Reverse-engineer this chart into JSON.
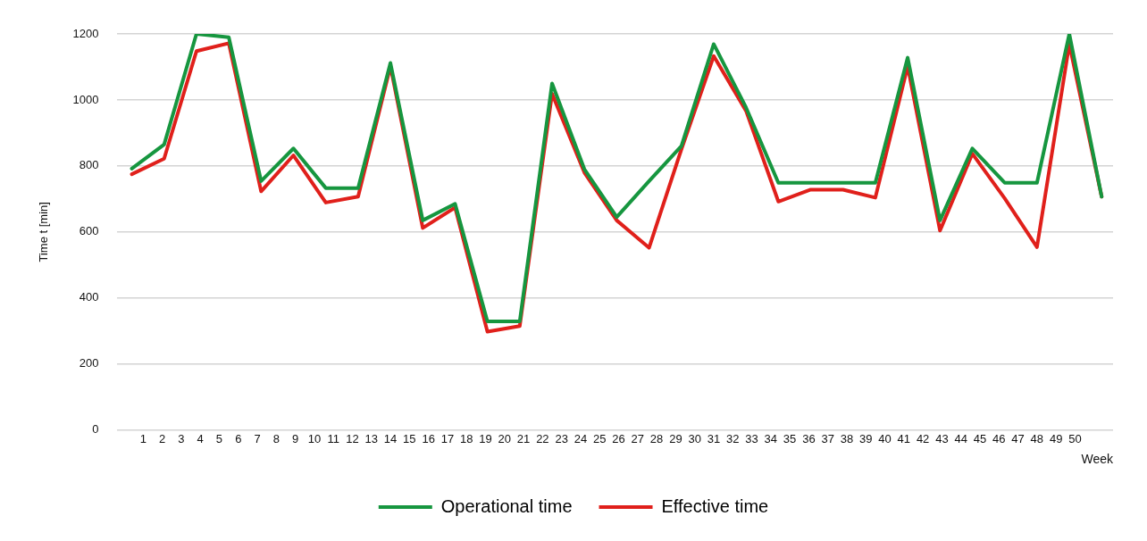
{
  "chart_data": {
    "type": "line",
    "xlabel": "Week",
    "ylabel": "Time t [min]",
    "x": [
      0.4,
      2.1,
      3.8,
      5.5,
      7.2,
      8.9,
      10.6,
      12.3,
      14.0,
      15.7,
      17.4,
      19.1,
      20.8,
      22.5,
      24.2,
      25.9,
      27.6,
      29.3,
      31.0,
      32.7,
      34.4,
      36.1,
      37.8,
      39.5,
      41.2,
      42.9,
      44.6,
      46.3,
      48.0,
      49.7,
      51.4
    ],
    "series": [
      {
        "name": "Operational time",
        "color": "#16963f",
        "values": [
          792,
          865,
          1200,
          1190,
          754,
          853,
          733,
          733,
          1112,
          635,
          685,
          329,
          329,
          1050,
          790,
          645,
          754,
          860,
          1169,
          977,
          749,
          749,
          749,
          749,
          1128,
          635,
          853,
          749,
          749,
          1200,
          707
        ]
      },
      {
        "name": "Effective time",
        "color": "#e0201b",
        "values": [
          775,
          822,
          1148,
          1172,
          723,
          832,
          689,
          707,
          1102,
          612,
          674,
          298,
          315,
          1019,
          780,
          635,
          552,
          850,
          1133,
          967,
          692,
          728,
          728,
          704,
          1102,
          604,
          837,
          702,
          554,
          1169,
          707
        ]
      }
    ],
    "xlim": [
      -0.4,
      52
    ],
    "xticks": [
      1,
      2,
      3,
      4,
      5,
      6,
      7,
      8,
      9,
      10,
      11,
      12,
      13,
      14,
      15,
      16,
      17,
      18,
      19,
      20,
      21,
      22,
      23,
      24,
      25,
      26,
      27,
      28,
      29,
      30,
      31,
      32,
      33,
      34,
      35,
      36,
      37,
      38,
      39,
      40,
      41,
      42,
      43,
      44,
      45,
      46,
      47,
      48,
      49,
      50
    ],
    "ylim": [
      0,
      1200
    ],
    "yticks": [
      0,
      200,
      400,
      600,
      800,
      1000,
      1200
    ],
    "grid": "y",
    "legend": "bottom",
    "marker": "none",
    "line_style": "solid"
  }
}
